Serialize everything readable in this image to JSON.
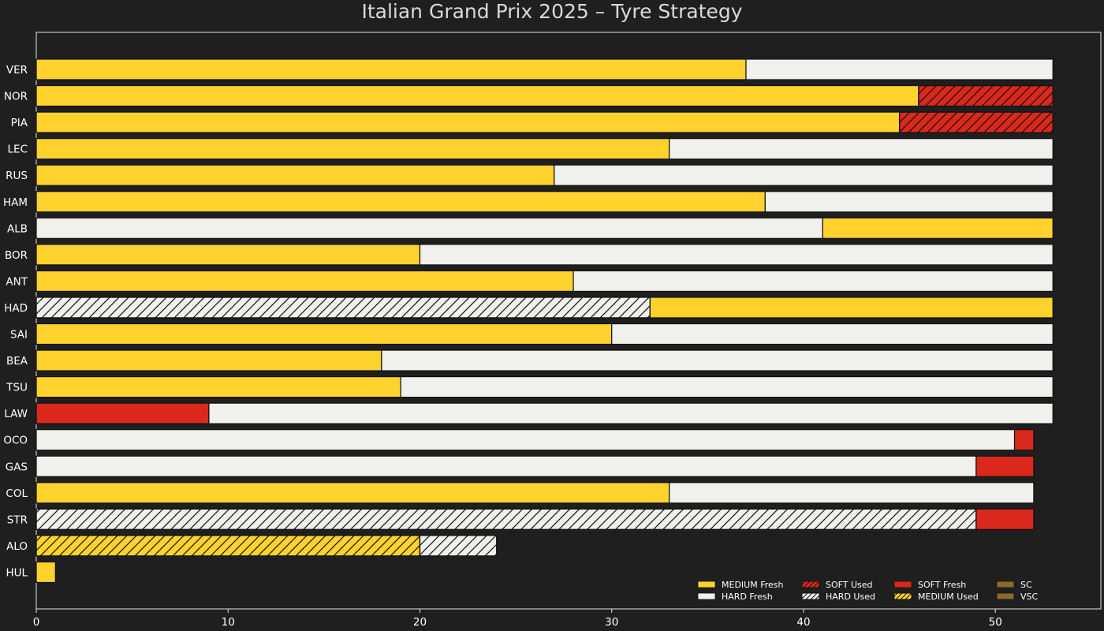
{
  "chart_data": {
    "type": "bar",
    "orientation": "horizontal-stacked",
    "title": "Italian Grand Prix 2025  –  Tyre Strategy",
    "xlabel": "",
    "ylabel": "",
    "xlim": [
      0,
      55.5
    ],
    "xticks": [
      0,
      10,
      20,
      30,
      40,
      50
    ],
    "grid": false,
    "legend_position": "bottom-right",
    "compound_colors": {
      "MEDIUM": "#ffd22e",
      "HARD": "#f0f0ec",
      "SOFT": "#da291c"
    },
    "legend": [
      {
        "label": "MEDIUM Fresh",
        "compound": "MEDIUM",
        "used": false
      },
      {
        "label": "HARD Fresh",
        "compound": "HARD",
        "used": false
      },
      {
        "label": "SOFT Used",
        "compound": "SOFT",
        "used": true
      },
      {
        "label": "HARD Used",
        "compound": "HARD",
        "used": true
      },
      {
        "label": "SOFT Fresh",
        "compound": "SOFT",
        "used": false
      },
      {
        "label": "MEDIUM Used",
        "compound": "MEDIUM",
        "used": true
      },
      {
        "label": "SC",
        "color": "#8a6a2a"
      },
      {
        "label": "VSC",
        "color": "#8a6a2a"
      }
    ],
    "drivers": [
      {
        "driver": "VER",
        "stints": [
          {
            "compound": "MEDIUM",
            "used": false,
            "start": 0,
            "end": 37
          },
          {
            "compound": "HARD",
            "used": false,
            "start": 37,
            "end": 53
          }
        ]
      },
      {
        "driver": "NOR",
        "stints": [
          {
            "compound": "MEDIUM",
            "used": false,
            "start": 0,
            "end": 46
          },
          {
            "compound": "SOFT",
            "used": true,
            "start": 46,
            "end": 53
          }
        ]
      },
      {
        "driver": "PIA",
        "stints": [
          {
            "compound": "MEDIUM",
            "used": false,
            "start": 0,
            "end": 45
          },
          {
            "compound": "SOFT",
            "used": true,
            "start": 45,
            "end": 53
          }
        ]
      },
      {
        "driver": "LEC",
        "stints": [
          {
            "compound": "MEDIUM",
            "used": false,
            "start": 0,
            "end": 33
          },
          {
            "compound": "HARD",
            "used": false,
            "start": 33,
            "end": 53
          }
        ]
      },
      {
        "driver": "RUS",
        "stints": [
          {
            "compound": "MEDIUM",
            "used": false,
            "start": 0,
            "end": 27
          },
          {
            "compound": "HARD",
            "used": false,
            "start": 27,
            "end": 53
          }
        ]
      },
      {
        "driver": "HAM",
        "stints": [
          {
            "compound": "MEDIUM",
            "used": false,
            "start": 0,
            "end": 38
          },
          {
            "compound": "HARD",
            "used": false,
            "start": 38,
            "end": 53
          }
        ]
      },
      {
        "driver": "ALB",
        "stints": [
          {
            "compound": "HARD",
            "used": false,
            "start": 0,
            "end": 41
          },
          {
            "compound": "MEDIUM",
            "used": false,
            "start": 41,
            "end": 53
          }
        ]
      },
      {
        "driver": "BOR",
        "stints": [
          {
            "compound": "MEDIUM",
            "used": false,
            "start": 0,
            "end": 20
          },
          {
            "compound": "HARD",
            "used": false,
            "start": 20,
            "end": 53
          }
        ]
      },
      {
        "driver": "ANT",
        "stints": [
          {
            "compound": "MEDIUM",
            "used": false,
            "start": 0,
            "end": 28
          },
          {
            "compound": "HARD",
            "used": false,
            "start": 28,
            "end": 53
          }
        ]
      },
      {
        "driver": "HAD",
        "stints": [
          {
            "compound": "HARD",
            "used": true,
            "start": 0,
            "end": 32
          },
          {
            "compound": "MEDIUM",
            "used": false,
            "start": 32,
            "end": 53
          }
        ]
      },
      {
        "driver": "SAI",
        "stints": [
          {
            "compound": "MEDIUM",
            "used": false,
            "start": 0,
            "end": 30
          },
          {
            "compound": "HARD",
            "used": false,
            "start": 30,
            "end": 53
          }
        ]
      },
      {
        "driver": "BEA",
        "stints": [
          {
            "compound": "MEDIUM",
            "used": false,
            "start": 0,
            "end": 18
          },
          {
            "compound": "HARD",
            "used": false,
            "start": 18,
            "end": 53
          }
        ]
      },
      {
        "driver": "TSU",
        "stints": [
          {
            "compound": "MEDIUM",
            "used": false,
            "start": 0,
            "end": 19
          },
          {
            "compound": "HARD",
            "used": false,
            "start": 19,
            "end": 53
          }
        ]
      },
      {
        "driver": "LAW",
        "stints": [
          {
            "compound": "SOFT",
            "used": false,
            "start": 0,
            "end": 9
          },
          {
            "compound": "HARD",
            "used": false,
            "start": 9,
            "end": 53
          }
        ]
      },
      {
        "driver": "OCO",
        "stints": [
          {
            "compound": "HARD",
            "used": false,
            "start": 0,
            "end": 51
          },
          {
            "compound": "SOFT",
            "used": false,
            "start": 51,
            "end": 52
          }
        ]
      },
      {
        "driver": "GAS",
        "stints": [
          {
            "compound": "HARD",
            "used": false,
            "start": 0,
            "end": 49
          },
          {
            "compound": "SOFT",
            "used": false,
            "start": 49,
            "end": 52
          }
        ]
      },
      {
        "driver": "COL",
        "stints": [
          {
            "compound": "MEDIUM",
            "used": false,
            "start": 0,
            "end": 33
          },
          {
            "compound": "HARD",
            "used": false,
            "start": 33,
            "end": 52
          }
        ]
      },
      {
        "driver": "STR",
        "stints": [
          {
            "compound": "HARD",
            "used": true,
            "start": 0,
            "end": 49
          },
          {
            "compound": "SOFT",
            "used": false,
            "start": 49,
            "end": 52
          }
        ]
      },
      {
        "driver": "ALO",
        "stints": [
          {
            "compound": "MEDIUM",
            "used": true,
            "start": 0,
            "end": 20
          },
          {
            "compound": "HARD",
            "used": true,
            "start": 20,
            "end": 24
          }
        ]
      },
      {
        "driver": "HUL",
        "stints": [
          {
            "compound": "MEDIUM",
            "used": false,
            "start": 0,
            "end": 1
          }
        ]
      }
    ]
  }
}
